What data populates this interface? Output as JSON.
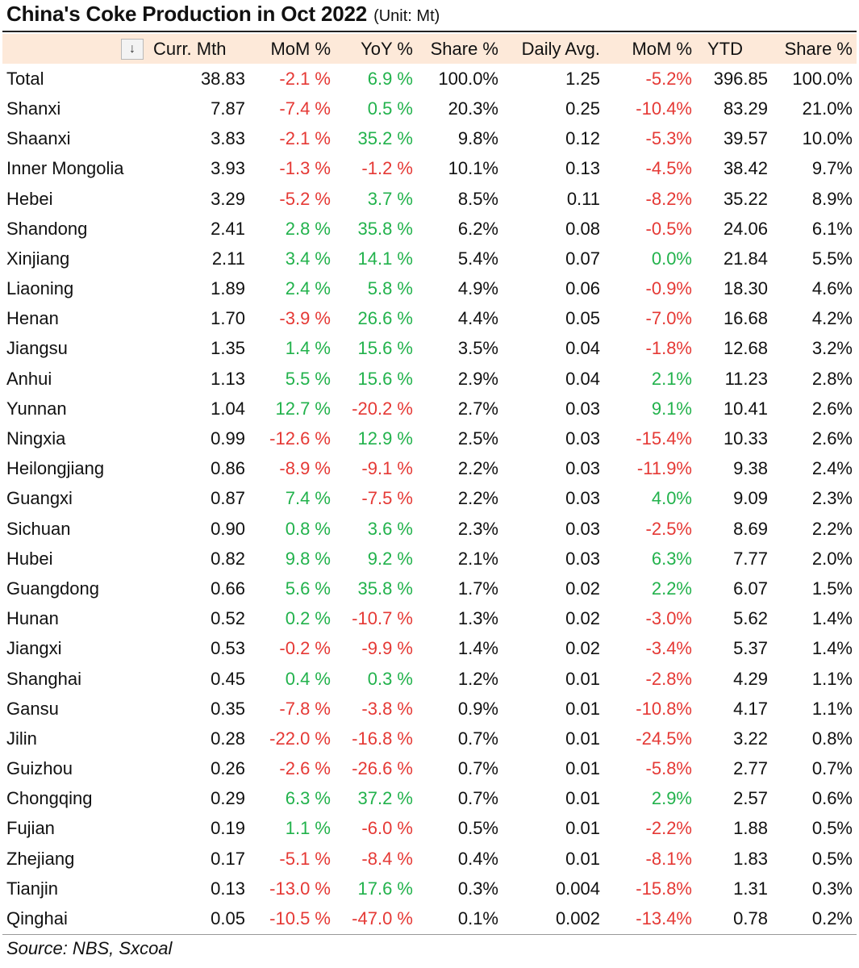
{
  "title": "China's Coke Production in Oct 2022",
  "unit": "(Unit: Mt)",
  "sort_icon": "sort-descending-icon",
  "columns": [
    "Curr. Mth",
    "MoM %",
    "YoY %",
    "Share %",
    "Daily Avg.",
    "MoM %",
    "YTD",
    "Share %"
  ],
  "colors": {
    "negative": "#e53935",
    "positive": "#22b24c",
    "header_bg": "#fde9d9"
  },
  "rows": [
    [
      "Total",
      "38.83",
      "-2.1 %",
      "6.9 %",
      "100.0%",
      "1.25",
      "-5.2%",
      "396.85",
      "100.0%"
    ],
    [
      "Shanxi",
      "7.87",
      "-7.4 %",
      "0.5 %",
      "20.3%",
      "0.25",
      "-10.4%",
      "83.29",
      "21.0%"
    ],
    [
      "Shaanxi",
      "3.83",
      "-2.1 %",
      "35.2 %",
      "9.8%",
      "0.12",
      "-5.3%",
      "39.57",
      "10.0%"
    ],
    [
      "Inner Mongolia",
      "3.93",
      "-1.3 %",
      "-1.2 %",
      "10.1%",
      "0.13",
      "-4.5%",
      "38.42",
      "9.7%"
    ],
    [
      "Hebei",
      "3.29",
      "-5.2 %",
      "3.7 %",
      "8.5%",
      "0.11",
      "-8.2%",
      "35.22",
      "8.9%"
    ],
    [
      "Shandong",
      "2.41",
      "2.8 %",
      "35.8 %",
      "6.2%",
      "0.08",
      "-0.5%",
      "24.06",
      "6.1%"
    ],
    [
      "Xinjiang",
      "2.11",
      "3.4 %",
      "14.1 %",
      "5.4%",
      "0.07",
      "0.0%",
      "21.84",
      "5.5%"
    ],
    [
      "Liaoning",
      "1.89",
      "2.4 %",
      "5.8 %",
      "4.9%",
      "0.06",
      "-0.9%",
      "18.30",
      "4.6%"
    ],
    [
      "Henan",
      "1.70",
      "-3.9 %",
      "26.6 %",
      "4.4%",
      "0.05",
      "-7.0%",
      "16.68",
      "4.2%"
    ],
    [
      "Jiangsu",
      "1.35",
      "1.4 %",
      "15.6 %",
      "3.5%",
      "0.04",
      "-1.8%",
      "12.68",
      "3.2%"
    ],
    [
      "Anhui",
      "1.13",
      "5.5 %",
      "15.6 %",
      "2.9%",
      "0.04",
      "2.1%",
      "11.23",
      "2.8%"
    ],
    [
      "Yunnan",
      "1.04",
      "12.7 %",
      "-20.2 %",
      "2.7%",
      "0.03",
      "9.1%",
      "10.41",
      "2.6%"
    ],
    [
      "Ningxia",
      "0.99",
      "-12.6 %",
      "12.9 %",
      "2.5%",
      "0.03",
      "-15.4%",
      "10.33",
      "2.6%"
    ],
    [
      "Heilongjiang",
      "0.86",
      "-8.9 %",
      "-9.1 %",
      "2.2%",
      "0.03",
      "-11.9%",
      "9.38",
      "2.4%"
    ],
    [
      "Guangxi",
      "0.87",
      "7.4 %",
      "-7.5 %",
      "2.2%",
      "0.03",
      "4.0%",
      "9.09",
      "2.3%"
    ],
    [
      "Sichuan",
      "0.90",
      "0.8 %",
      "3.6 %",
      "2.3%",
      "0.03",
      "-2.5%",
      "8.69",
      "2.2%"
    ],
    [
      "Hubei",
      "0.82",
      "9.8 %",
      "9.2 %",
      "2.1%",
      "0.03",
      "6.3%",
      "7.77",
      "2.0%"
    ],
    [
      "Guangdong",
      "0.66",
      "5.6 %",
      "35.8 %",
      "1.7%",
      "0.02",
      "2.2%",
      "6.07",
      "1.5%"
    ],
    [
      "Hunan",
      "0.52",
      "0.2 %",
      "-10.7 %",
      "1.3%",
      "0.02",
      "-3.0%",
      "5.62",
      "1.4%"
    ],
    [
      "Jiangxi",
      "0.53",
      "-0.2 %",
      "-9.9 %",
      "1.4%",
      "0.02",
      "-3.4%",
      "5.37",
      "1.4%"
    ],
    [
      "Shanghai",
      "0.45",
      "0.4 %",
      "0.3 %",
      "1.2%",
      "0.01",
      "-2.8%",
      "4.29",
      "1.1%"
    ],
    [
      "Gansu",
      "0.35",
      "-7.8 %",
      "-3.8 %",
      "0.9%",
      "0.01",
      "-10.8%",
      "4.17",
      "1.1%"
    ],
    [
      "Jilin",
      "0.28",
      "-22.0 %",
      "-16.8 %",
      "0.7%",
      "0.01",
      "-24.5%",
      "3.22",
      "0.8%"
    ],
    [
      "Guizhou",
      "0.26",
      "-2.6 %",
      "-26.6 %",
      "0.7%",
      "0.01",
      "-5.8%",
      "2.77",
      "0.7%"
    ],
    [
      "Chongqing",
      "0.29",
      "6.3 %",
      "37.2 %",
      "0.7%",
      "0.01",
      "2.9%",
      "2.57",
      "0.6%"
    ],
    [
      "Fujian",
      "0.19",
      "1.1 %",
      "-6.0 %",
      "0.5%",
      "0.01",
      "-2.2%",
      "1.88",
      "0.5%"
    ],
    [
      "Zhejiang",
      "0.17",
      "-5.1 %",
      "-8.4 %",
      "0.4%",
      "0.01",
      "-8.1%",
      "1.83",
      "0.5%"
    ],
    [
      "Tianjin",
      "0.13",
      "-13.0 %",
      "17.6 %",
      "0.3%",
      "0.004",
      "-15.8%",
      "1.31",
      "0.3%"
    ],
    [
      "Qinghai",
      "0.05",
      "-10.5 %",
      "-47.0 %",
      "0.1%",
      "0.002",
      "-13.4%",
      "0.78",
      "0.2%"
    ]
  ],
  "source": "Source: NBS, Sxcoal"
}
